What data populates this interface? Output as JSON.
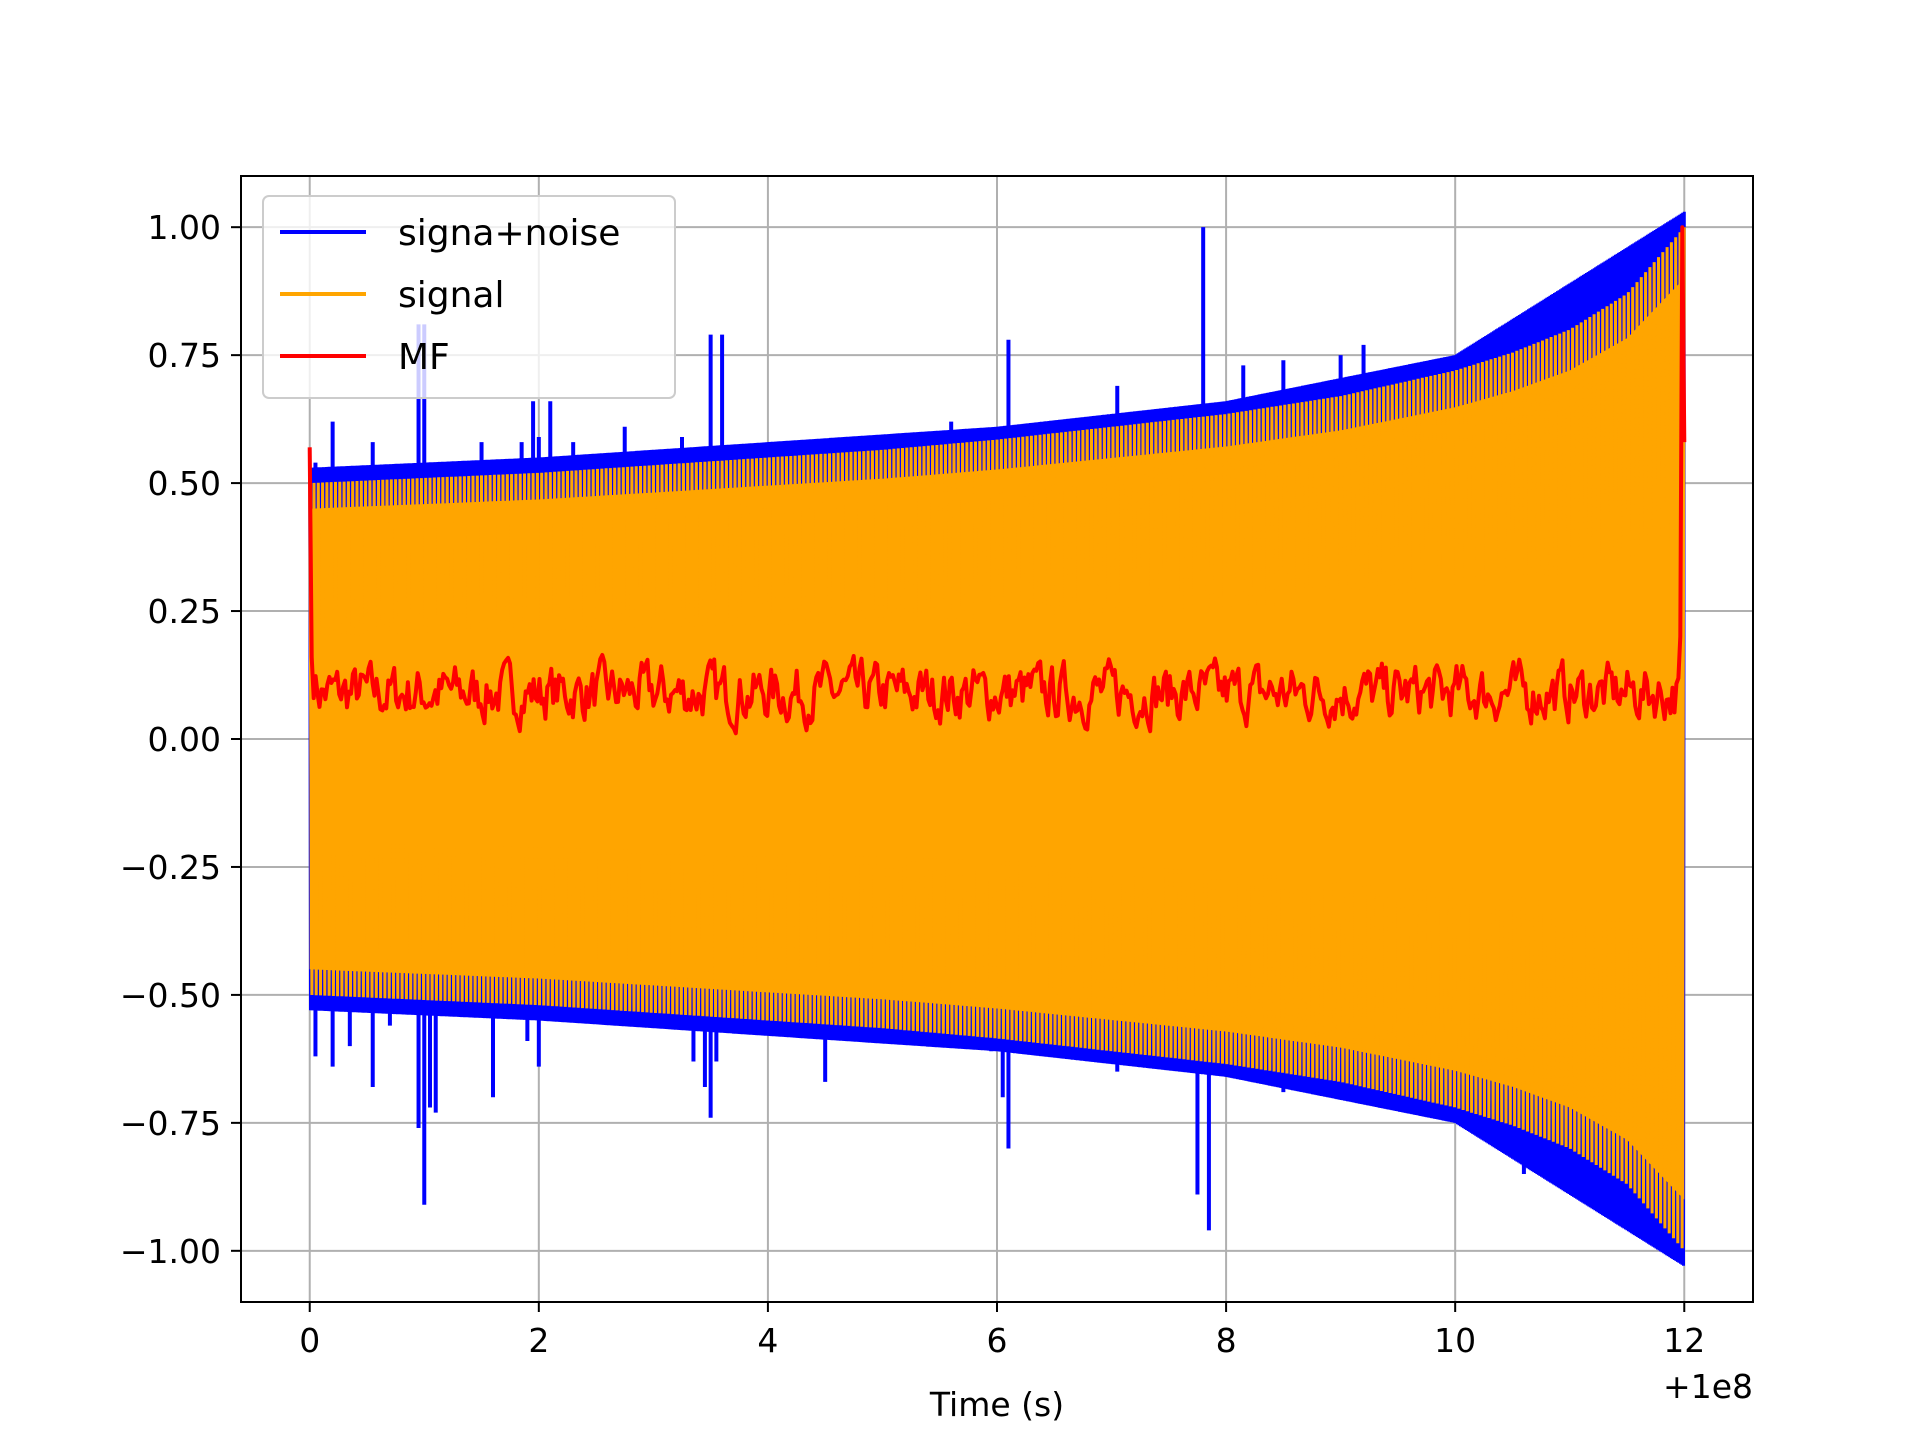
{
  "chart_data": {
    "type": "line",
    "title": "",
    "xlabel": "Time (s)",
    "ylabel": "",
    "x_offset_label": "+1e8",
    "xlim": [
      -0.6,
      12.6
    ],
    "ylim": [
      -1.1,
      1.1
    ],
    "x_ticks": [
      0,
      2,
      4,
      6,
      8,
      10,
      12
    ],
    "x_tick_labels": [
      "0",
      "2",
      "4",
      "6",
      "8",
      "10",
      "12"
    ],
    "y_ticks": [
      1.0,
      0.75,
      0.5,
      0.25,
      0.0,
      -0.25,
      -0.5,
      -0.75,
      -1.0
    ],
    "y_tick_labels": [
      "1.00",
      "0.75",
      "0.50",
      "0.25",
      "0.00",
      "−0.25",
      "−0.50",
      "−0.75",
      "−1.00"
    ],
    "grid": true,
    "legend_position": "top-left",
    "series": [
      {
        "name": "signa+noise",
        "color": "#0000ff",
        "envelope_x": [
          0,
          2,
          4,
          6,
          8,
          10,
          12
        ],
        "envelope_upper": [
          0.5,
          0.52,
          0.55,
          0.58,
          0.63,
          0.72,
          1.0
        ],
        "spikes": [
          {
            "x": 0.05,
            "y": 0.54
          },
          {
            "x": 0.05,
            "y": -0.62
          },
          {
            "x": 0.15,
            "y": -0.52
          },
          {
            "x": 0.2,
            "y": 0.62
          },
          {
            "x": 0.2,
            "y": -0.64
          },
          {
            "x": 0.35,
            "y": -0.6
          },
          {
            "x": 0.55,
            "y": 0.58
          },
          {
            "x": 0.55,
            "y": -0.68
          },
          {
            "x": 0.7,
            "y": -0.56
          },
          {
            "x": 0.95,
            "y": 0.81
          },
          {
            "x": 0.95,
            "y": -0.76
          },
          {
            "x": 1.0,
            "y": 0.81
          },
          {
            "x": 1.0,
            "y": -0.91
          },
          {
            "x": 1.05,
            "y": -0.72
          },
          {
            "x": 1.1,
            "y": -0.73
          },
          {
            "x": 1.25,
            "y": 0.52
          },
          {
            "x": 1.5,
            "y": 0.58
          },
          {
            "x": 1.6,
            "y": -0.7
          },
          {
            "x": 1.65,
            "y": 0.52
          },
          {
            "x": 1.85,
            "y": 0.58
          },
          {
            "x": 1.9,
            "y": -0.59
          },
          {
            "x": 1.95,
            "y": 0.66
          },
          {
            "x": 2.0,
            "y": 0.59
          },
          {
            "x": 2.0,
            "y": -0.64
          },
          {
            "x": 2.1,
            "y": 0.66
          },
          {
            "x": 2.3,
            "y": 0.58
          },
          {
            "x": 2.45,
            "y": 0.55
          },
          {
            "x": 2.75,
            "y": 0.61
          },
          {
            "x": 3.2,
            "y": -0.55
          },
          {
            "x": 3.25,
            "y": 0.59
          },
          {
            "x": 3.35,
            "y": -0.63
          },
          {
            "x": 3.45,
            "y": -0.68
          },
          {
            "x": 3.5,
            "y": 0.79
          },
          {
            "x": 3.5,
            "y": -0.74
          },
          {
            "x": 3.55,
            "y": -0.63
          },
          {
            "x": 3.6,
            "y": 0.79
          },
          {
            "x": 4.0,
            "y": -0.57
          },
          {
            "x": 4.5,
            "y": -0.67
          },
          {
            "x": 5.6,
            "y": 0.62
          },
          {
            "x": 5.95,
            "y": -0.61
          },
          {
            "x": 6.05,
            "y": -0.7
          },
          {
            "x": 6.1,
            "y": 0.78
          },
          {
            "x": 6.1,
            "y": -0.8
          },
          {
            "x": 7.05,
            "y": 0.69
          },
          {
            "x": 7.05,
            "y": -0.65
          },
          {
            "x": 7.75,
            "y": -0.89
          },
          {
            "x": 7.8,
            "y": 1.0
          },
          {
            "x": 7.85,
            "y": -0.96
          },
          {
            "x": 8.15,
            "y": 0.73
          },
          {
            "x": 8.5,
            "y": 0.74
          },
          {
            "x": 8.5,
            "y": -0.69
          },
          {
            "x": 9.0,
            "y": 0.75
          },
          {
            "x": 9.2,
            "y": 0.77
          },
          {
            "x": 9.5,
            "y": -0.71
          },
          {
            "x": 10.1,
            "y": -0.73
          },
          {
            "x": 10.6,
            "y": -0.85
          },
          {
            "x": 10.7,
            "y": 0.79
          }
        ]
      },
      {
        "name": "signal",
        "color": "#ffa500",
        "envelope_x": [
          0,
          1,
          2,
          3,
          4,
          5,
          6,
          7,
          8,
          9,
          10,
          10.5,
          11,
          11.5,
          12
        ],
        "envelope_upper": [
          0.5,
          0.51,
          0.52,
          0.535,
          0.55,
          0.565,
          0.585,
          0.61,
          0.635,
          0.67,
          0.72,
          0.755,
          0.8,
          0.87,
          1.0
        ],
        "cycles": 320
      },
      {
        "name": "MF",
        "color": "#ff0000",
        "start_spike": 0.57,
        "end_spike": 1.0,
        "baseline_range": [
          0.0,
          0.18
        ],
        "baseline_mean": 0.07
      }
    ]
  }
}
